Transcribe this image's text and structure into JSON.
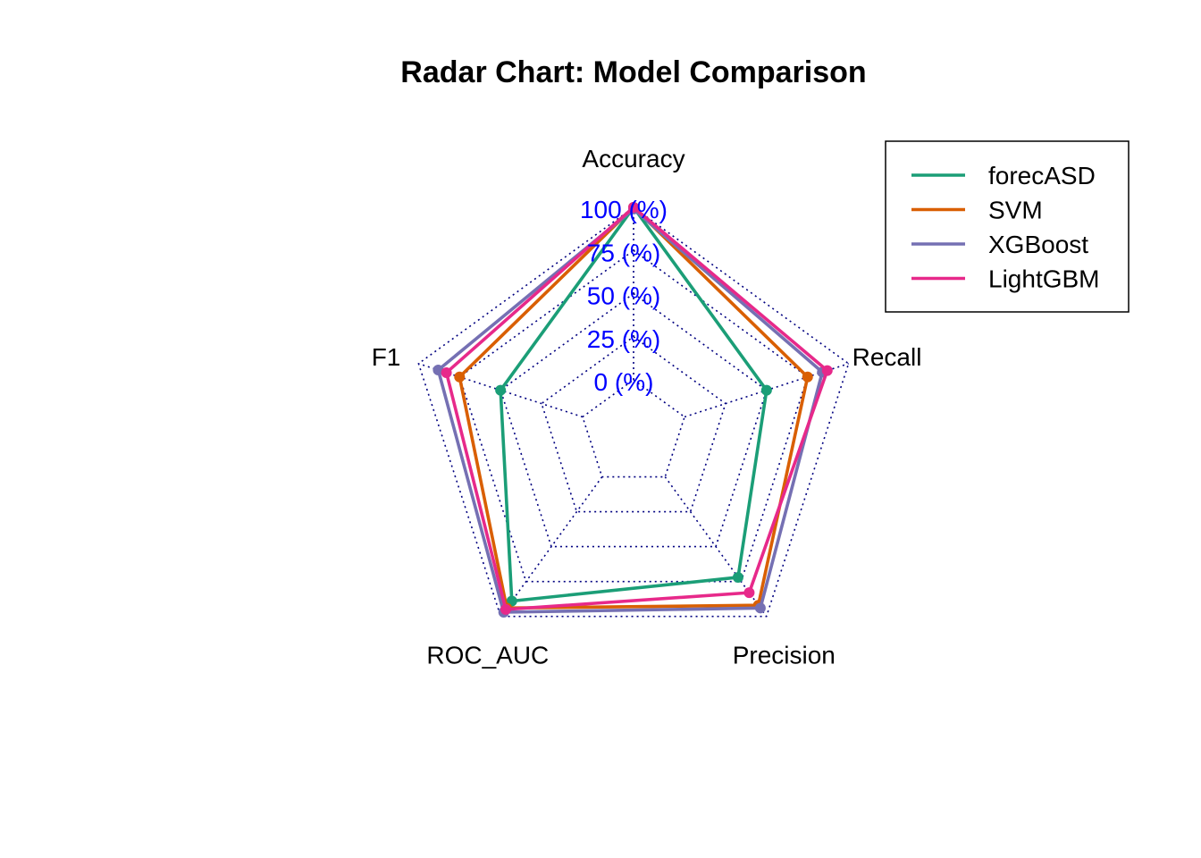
{
  "chart_data": {
    "type": "radar",
    "title": "Radar Chart: Model Comparison",
    "axes": [
      "Accuracy",
      "Recall",
      "Precision",
      "ROC_AUC",
      "F1"
    ],
    "range": [
      0,
      100
    ],
    "tick_labels": [
      "0 (%)",
      "25 (%)",
      "50 (%)",
      "75 (%)",
      "100 (%)"
    ],
    "grid": "dotted",
    "grid_color": "#000080",
    "tick_color": "#0000ff",
    "legend_position": "top-right",
    "series": [
      {
        "name": "forecASD",
        "color": "#1b9e77",
        "values": [
          100,
          50,
          72,
          89,
          50
        ]
      },
      {
        "name": "SVM",
        "color": "#d95f02",
        "values": [
          100,
          75,
          92,
          94,
          75
        ]
      },
      {
        "name": "XGBoost",
        "color": "#7570b3",
        "values": [
          99,
          84,
          94,
          97,
          88
        ]
      },
      {
        "name": "LightGBM",
        "color": "#e7298a",
        "values": [
          100,
          87,
          83,
          95,
          83
        ]
      }
    ]
  }
}
